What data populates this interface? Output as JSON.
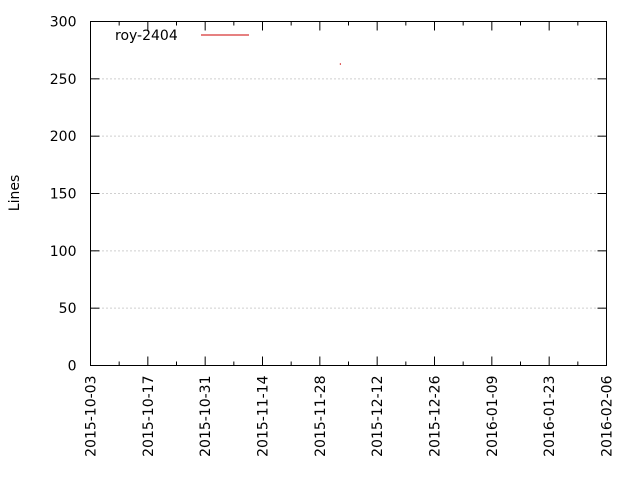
{
  "chart_data": {
    "type": "line",
    "ylabel": "Lines",
    "xlabel": "",
    "ylim": [
      0,
      300
    ],
    "yticks": [
      0,
      50,
      100,
      150,
      200,
      250,
      300
    ],
    "xlim": [
      "2015-10-03",
      "2016-02-06"
    ],
    "xticks": [
      "2015-10-03",
      "2015-10-17",
      "2015-10-31",
      "2015-11-14",
      "2015-11-28",
      "2015-12-12",
      "2015-12-26",
      "2016-01-09",
      "2016-01-23",
      "2016-02-06"
    ],
    "grid": "horizontal-dotted",
    "legend_position": "top-left",
    "series": [
      {
        "name": "roy-2404",
        "color": "#cc0000",
        "points": [
          {
            "x": "2015-12-03",
            "y": 263
          }
        ]
      }
    ]
  }
}
